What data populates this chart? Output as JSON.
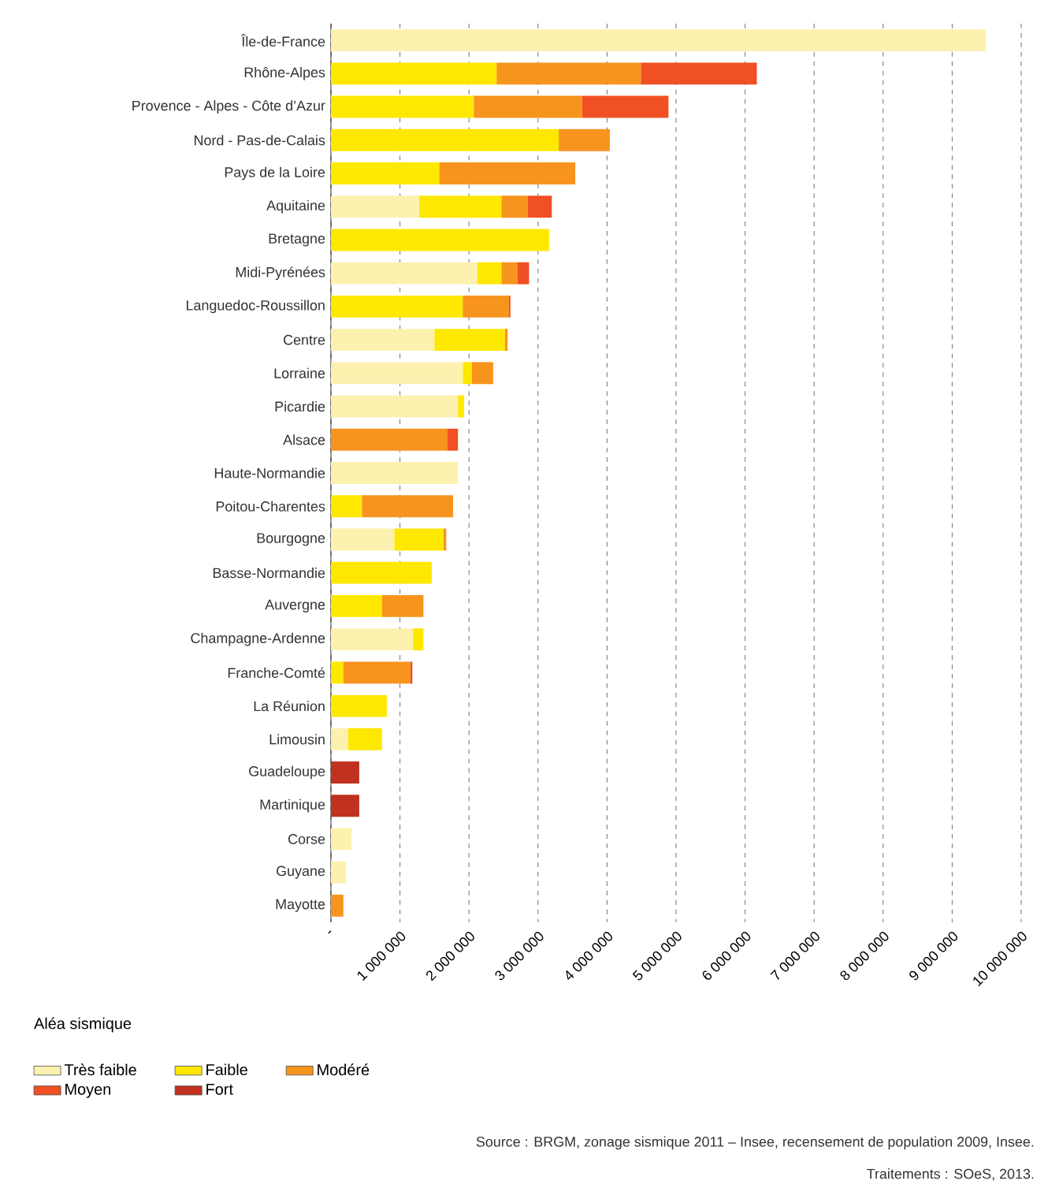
{
  "chart_data": {
    "type": "bar",
    "orientation": "horizontal",
    "stacked": true,
    "categories": [
      "Île-de-France",
      "Rhône-Alpes",
      "Provence - Alpes - Côte d’Azur",
      "Nord - Pas-de-Calais",
      "Pays de la Loire",
      "Aquitaine",
      "Bretagne",
      "Midi-Pyrénées",
      "Languedoc-Roussillon",
      "Centre",
      "Lorraine",
      "Picardie",
      "Alsace",
      "Haute-Normandie",
      "Poitou-Charentes",
      "Bourgogne",
      "Basse-Normandie",
      "Auvergne",
      "Champagne-Ardenne",
      "Franche-Comté",
      "La Réunion",
      "Limousin",
      "Guadeloupe",
      "Martinique",
      "Corse",
      "Guyane",
      "Mayotte"
    ],
    "series": [
      {
        "name": "Très faible",
        "color": "#fdf1b0",
        "values": [
          9490000,
          null,
          null,
          null,
          null,
          1280000,
          null,
          2120000,
          null,
          1500000,
          1910000,
          1840000,
          null,
          1840000,
          null,
          920000,
          null,
          null,
          1190000,
          null,
          null,
          250000,
          null,
          null,
          300000,
          220000,
          null
        ]
      },
      {
        "name": "Faible",
        "color": "#ffe800",
        "values": [
          null,
          2400000,
          2070000,
          3300000,
          1570000,
          1190000,
          3160000,
          350000,
          1910000,
          1020000,
          130000,
          90000,
          null,
          null,
          450000,
          710000,
          1460000,
          740000,
          150000,
          180000,
          810000,
          490000,
          null,
          null,
          null,
          null,
          null
        ]
      },
      {
        "name": "Modéré",
        "color": "#f7941d",
        "values": [
          null,
          2090000,
          1570000,
          740000,
          1970000,
          380000,
          null,
          230000,
          670000,
          40000,
          310000,
          null,
          1690000,
          null,
          1320000,
          40000,
          null,
          600000,
          null,
          970000,
          null,
          null,
          null,
          null,
          null,
          null,
          180000
        ]
      },
      {
        "name": "Moyen",
        "color": "#f05023",
        "values": [
          null,
          1680000,
          1250000,
          null,
          null,
          350000,
          null,
          170000,
          20000,
          null,
          null,
          null,
          150000,
          null,
          null,
          null,
          null,
          null,
          null,
          30000,
          null,
          null,
          null,
          null,
          null,
          null,
          null
        ]
      },
      {
        "name": "Fort",
        "color": "#c0311f",
        "values": [
          null,
          null,
          null,
          null,
          null,
          null,
          null,
          null,
          null,
          null,
          null,
          null,
          null,
          null,
          null,
          null,
          null,
          null,
          null,
          null,
          null,
          null,
          410000,
          410000,
          null,
          null,
          null
        ]
      }
    ],
    "xlim": [
      0,
      10000000
    ],
    "xticks": [
      {
        "value": 0,
        "label": "-"
      },
      {
        "value": 1000000,
        "label": "1 000 000"
      },
      {
        "value": 2000000,
        "label": "2 000 000"
      },
      {
        "value": 3000000,
        "label": "3 000 000"
      },
      {
        "value": 4000000,
        "label": "4 000 000"
      },
      {
        "value": 5000000,
        "label": "5 000 000"
      },
      {
        "value": 6000000,
        "label": "6 000 000"
      },
      {
        "value": 7000000,
        "label": "7 000 000"
      },
      {
        "value": 8000000,
        "label": "8 000 000"
      },
      {
        "value": 9000000,
        "label": "9 000 000"
      },
      {
        "value": 10000000,
        "label": "10 000 000"
      }
    ],
    "grid": "x",
    "legend": "bottom",
    "legend_title": "Aléa sismique",
    "annotations": [
      "Source : BRGM, zonage sismique 2011 – Insee, recensement de population 2009, Insee.",
      "Traitements : SOeS, 2013."
    ]
  }
}
